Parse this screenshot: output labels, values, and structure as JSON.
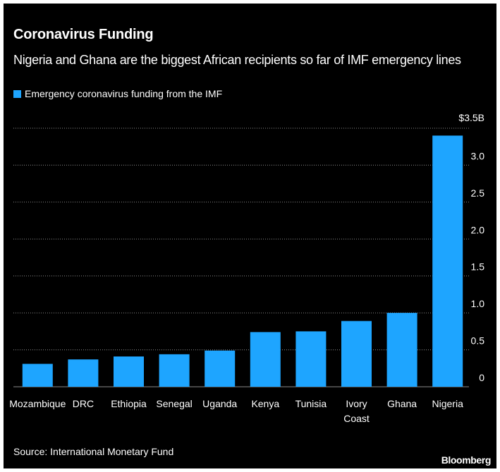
{
  "chart_data": {
    "type": "bar",
    "title": "Coronavirus Funding",
    "subtitle": "Nigeria and Ghana are the biggest African recipients so far of IMF emergency lines",
    "categories": [
      "Mozambique",
      "DRC",
      "Ethiopia",
      "Senegal",
      "Uganda",
      "Kenya",
      "Tunisia",
      "Ivory Coast",
      "Ghana",
      "Nigeria"
    ],
    "category_labels": [
      [
        "Mozambique"
      ],
      [
        "DRC"
      ],
      [
        "Ethiopia"
      ],
      [
        "Senegal"
      ],
      [
        "Uganda"
      ],
      [
        "Kenya"
      ],
      [
        "Tunisia"
      ],
      [
        "Ivory",
        "Coast"
      ],
      [
        "Ghana"
      ],
      [
        "Nigeria"
      ]
    ],
    "series": [
      {
        "name": "Emergency coronavirus funding from the IMF",
        "values": [
          0.31,
          0.37,
          0.41,
          0.44,
          0.49,
          0.74,
          0.75,
          0.89,
          1.0,
          3.4
        ]
      }
    ],
    "ylim": [
      0,
      3.5
    ],
    "yticks": [
      0,
      0.5,
      1.0,
      1.5,
      2.0,
      2.5,
      3.0,
      3.5
    ],
    "ytick_labels": [
      "0",
      "0.5",
      "1.0",
      "1.5",
      "2.0",
      "2.5",
      "3.0",
      "$3.5B"
    ],
    "y_axis_side": "right",
    "grid": true,
    "legend_position": "top-left",
    "xlabel": "",
    "ylabel": "",
    "source": "Source: International Monetary Fund",
    "brand": "Bloomberg",
    "colors": {
      "background": "#000000",
      "bar": "#1ea5ff",
      "text": "#ffffff",
      "grid": "#8a8a8a"
    }
  }
}
